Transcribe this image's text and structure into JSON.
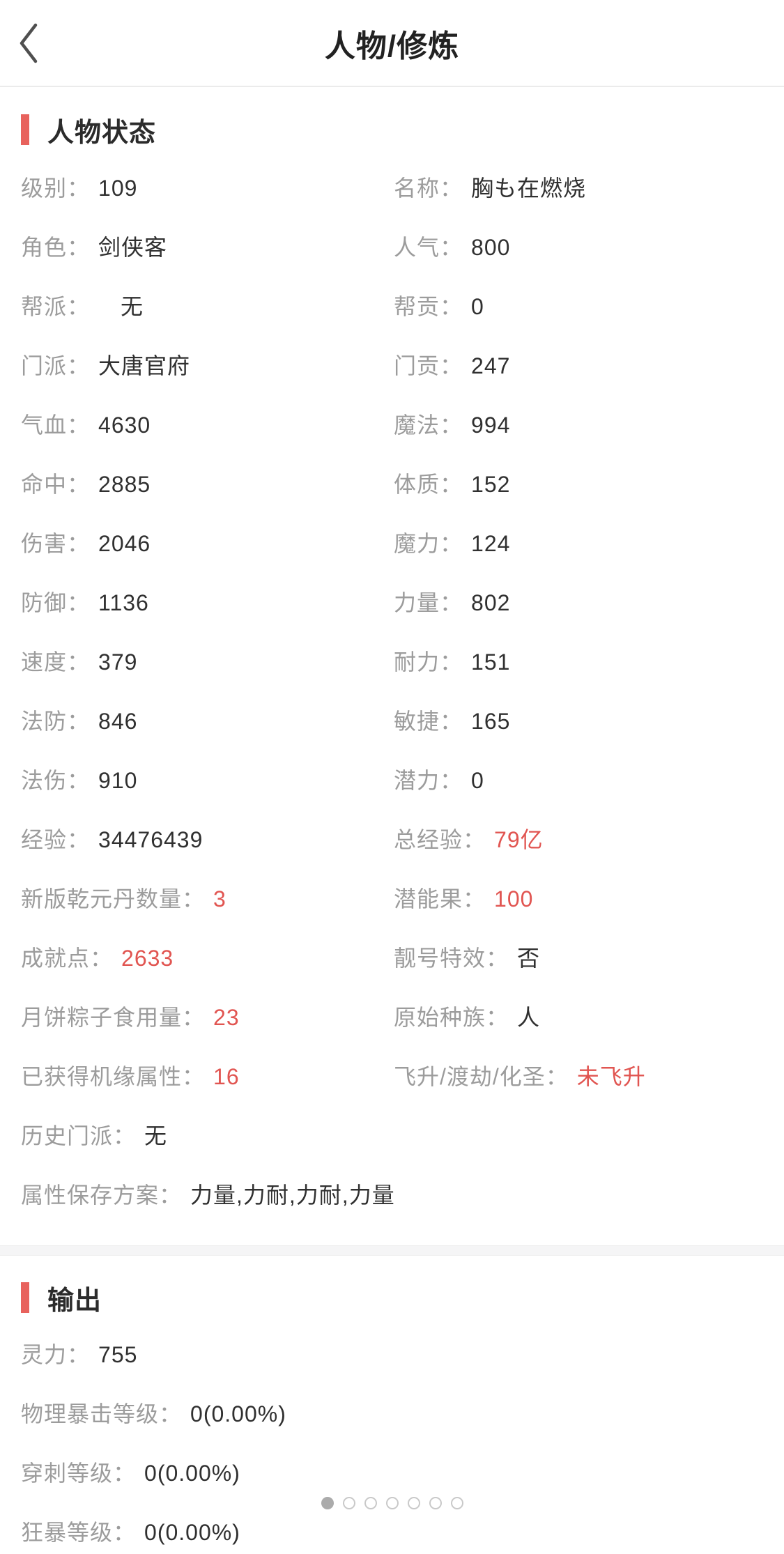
{
  "header": {
    "title": "人物/修炼"
  },
  "status_section": {
    "title": "人物状态",
    "cells": [
      {
        "label": "级别：",
        "value": "109"
      },
      {
        "label": "名称：",
        "value": "胸も在燃烧"
      },
      {
        "label": "角色：",
        "value": "剑侠客"
      },
      {
        "label": "人气：",
        "value": "800"
      },
      {
        "label": "帮派：",
        "value": "无",
        "indent": true
      },
      {
        "label": "帮贡：",
        "value": "0"
      },
      {
        "label": "门派：",
        "value": "大唐官府"
      },
      {
        "label": "门贡：",
        "value": "247"
      },
      {
        "label": "气血：",
        "value": "4630"
      },
      {
        "label": "魔法：",
        "value": "994"
      },
      {
        "label": "命中：",
        "value": "2885"
      },
      {
        "label": "体质：",
        "value": "152"
      },
      {
        "label": "伤害：",
        "value": "2046"
      },
      {
        "label": "魔力：",
        "value": "124"
      },
      {
        "label": "防御：",
        "value": "1136"
      },
      {
        "label": "力量：",
        "value": "802"
      },
      {
        "label": "速度：",
        "value": "379"
      },
      {
        "label": "耐力：",
        "value": "151"
      },
      {
        "label": "法防：",
        "value": "846"
      },
      {
        "label": "敏捷：",
        "value": "165"
      },
      {
        "label": "法伤：",
        "value": "910"
      },
      {
        "label": "潜力：",
        "value": "0"
      },
      {
        "label": "经验：",
        "value": "34476439"
      },
      {
        "label": "总经验：",
        "value": "79亿",
        "red": true
      },
      {
        "label": "新版乾元丹数量：",
        "value": "3",
        "red": true
      },
      {
        "label": "潜能果：",
        "value": "100",
        "red": true
      },
      {
        "label": "成就点：",
        "value": "2633",
        "red": true
      },
      {
        "label": "靓号特效：",
        "value": "否"
      },
      {
        "label": "月饼粽子食用量：",
        "value": "23",
        "red": true
      },
      {
        "label": "原始种族：",
        "value": "人"
      },
      {
        "label": "已获得机缘属性：",
        "value": "16",
        "red": true
      },
      {
        "label": "飞升/渡劫/化圣：",
        "value": "未飞升",
        "red": true
      },
      {
        "label": "历史门派：",
        "value": "无",
        "span": 2
      },
      {
        "label": "属性保存方案：",
        "value": "力量,力耐,力耐,力量",
        "span": 2
      }
    ]
  },
  "output_section": {
    "title": "输出",
    "cells": [
      {
        "label": "灵力：",
        "value": "755"
      },
      {
        "label": "物理暴击等级：",
        "value": "0(0.00%)"
      },
      {
        "label": "穿刺等级：",
        "value": "0(0.00%)"
      },
      {
        "label": "狂暴等级：",
        "value": "0(0.00%)"
      }
    ]
  },
  "pagination": {
    "count": 7,
    "active_index": 0
  },
  "colors": {
    "accent_red": "#e8625d",
    "value_red": "#e15551",
    "label_gray": "#9c9c9c",
    "value_dark": "#303030"
  }
}
